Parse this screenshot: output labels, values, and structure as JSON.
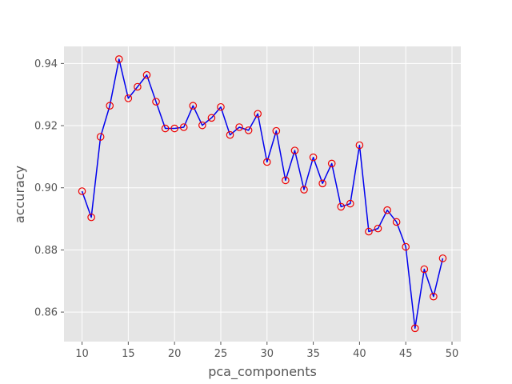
{
  "chart_data": {
    "type": "line",
    "title": "",
    "xlabel": "pca_components",
    "ylabel": "accuracy",
    "xlim": [
      8.05,
      50.95
    ],
    "ylim": [
      0.8505,
      0.9455
    ],
    "xticks": [
      10,
      15,
      20,
      25,
      30,
      35,
      40,
      45,
      50
    ],
    "yticks": [
      0.86,
      0.88,
      0.9,
      0.92,
      0.94
    ],
    "ytick_labels": [
      "0.86",
      "0.88",
      "0.90",
      "0.92",
      "0.94"
    ],
    "grid": true,
    "series": [
      {
        "line_color": "#0000ee",
        "marker": "open-circle",
        "marker_color": "#ee0000",
        "x": [
          10,
          11,
          12,
          13,
          14,
          15,
          16,
          17,
          18,
          19,
          20,
          21,
          22,
          23,
          24,
          25,
          26,
          27,
          28,
          29,
          30,
          31,
          32,
          33,
          34,
          35,
          36,
          37,
          38,
          39,
          40,
          41,
          42,
          43,
          44,
          45,
          46,
          47,
          48,
          49
        ],
        "y": [
          0.8989,
          0.8905,
          0.9164,
          0.9264,
          0.9414,
          0.9288,
          0.9325,
          0.9363,
          0.9277,
          0.9191,
          0.9191,
          0.9195,
          0.9264,
          0.9201,
          0.9225,
          0.926,
          0.917,
          0.9195,
          0.9185,
          0.9238,
          0.9083,
          0.9183,
          0.9024,
          0.912,
          0.8994,
          0.9098,
          0.9014,
          0.9078,
          0.8939,
          0.8949,
          0.9137,
          0.8859,
          0.8869,
          0.8928,
          0.889,
          0.881,
          0.8548,
          0.8738,
          0.865,
          0.8773
        ]
      }
    ]
  }
}
